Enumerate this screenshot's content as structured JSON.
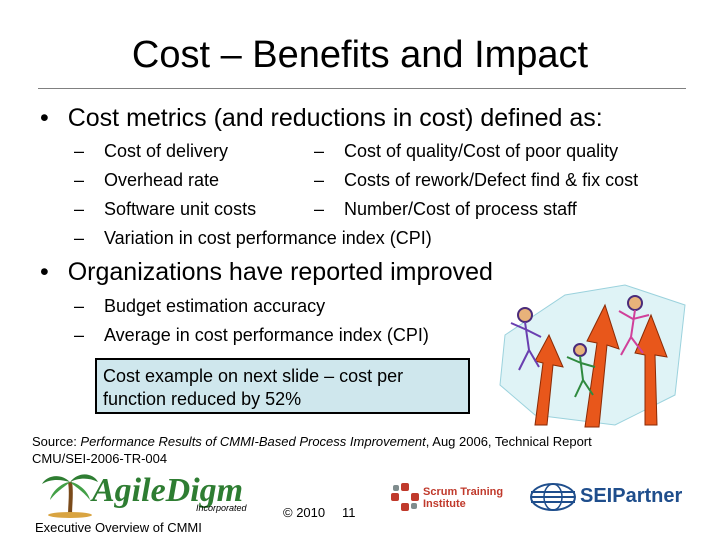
{
  "slide": {
    "title": "Cost – Benefits and Impact",
    "bullet1": "Cost metrics (and reductions in cost) defined as:",
    "col1": [
      "Cost of delivery",
      "Overhead rate",
      "Software unit costs"
    ],
    "col2": [
      "Cost of quality/Cost of poor quality",
      "Costs of rework/Defect find & fix cost",
      "Number/Cost of process staff"
    ],
    "wide_item": "Variation in cost performance index (CPI)",
    "bullet2": "Organizations have reported improved",
    "sub2": [
      "Budget estimation accuracy",
      "Average in cost performance index (CPI)"
    ],
    "callout_line1": "Cost example on next slide – cost per",
    "callout_line2": "function reduced by 52%",
    "source_prefix": "Source: ",
    "source_title": "Performance Results of CMMI-Based Process Improvement",
    "source_suffix": ", Aug 2006, Technical Report",
    "source_line2": "CMU/SEI-2006-TR-004"
  },
  "footer": {
    "logo_name": "AgileDigm",
    "logo_inc": "Incorporated",
    "copyright": "© 2010",
    "page": "11",
    "caption": "Executive Overview of CMMI",
    "scrum_line1": "Scrum Training",
    "scrum_line2": "Institute",
    "sei_label": "SEIPartner"
  },
  "symbols": {
    "bullet": "•",
    "dash": "–"
  },
  "colors": {
    "callout_bg": "#cfe7ed",
    "logo_green": "#2e7d32",
    "arrow_orange": "#e8571b",
    "scrum_red": "#c0392b",
    "sei_blue": "#1f4e8c"
  }
}
